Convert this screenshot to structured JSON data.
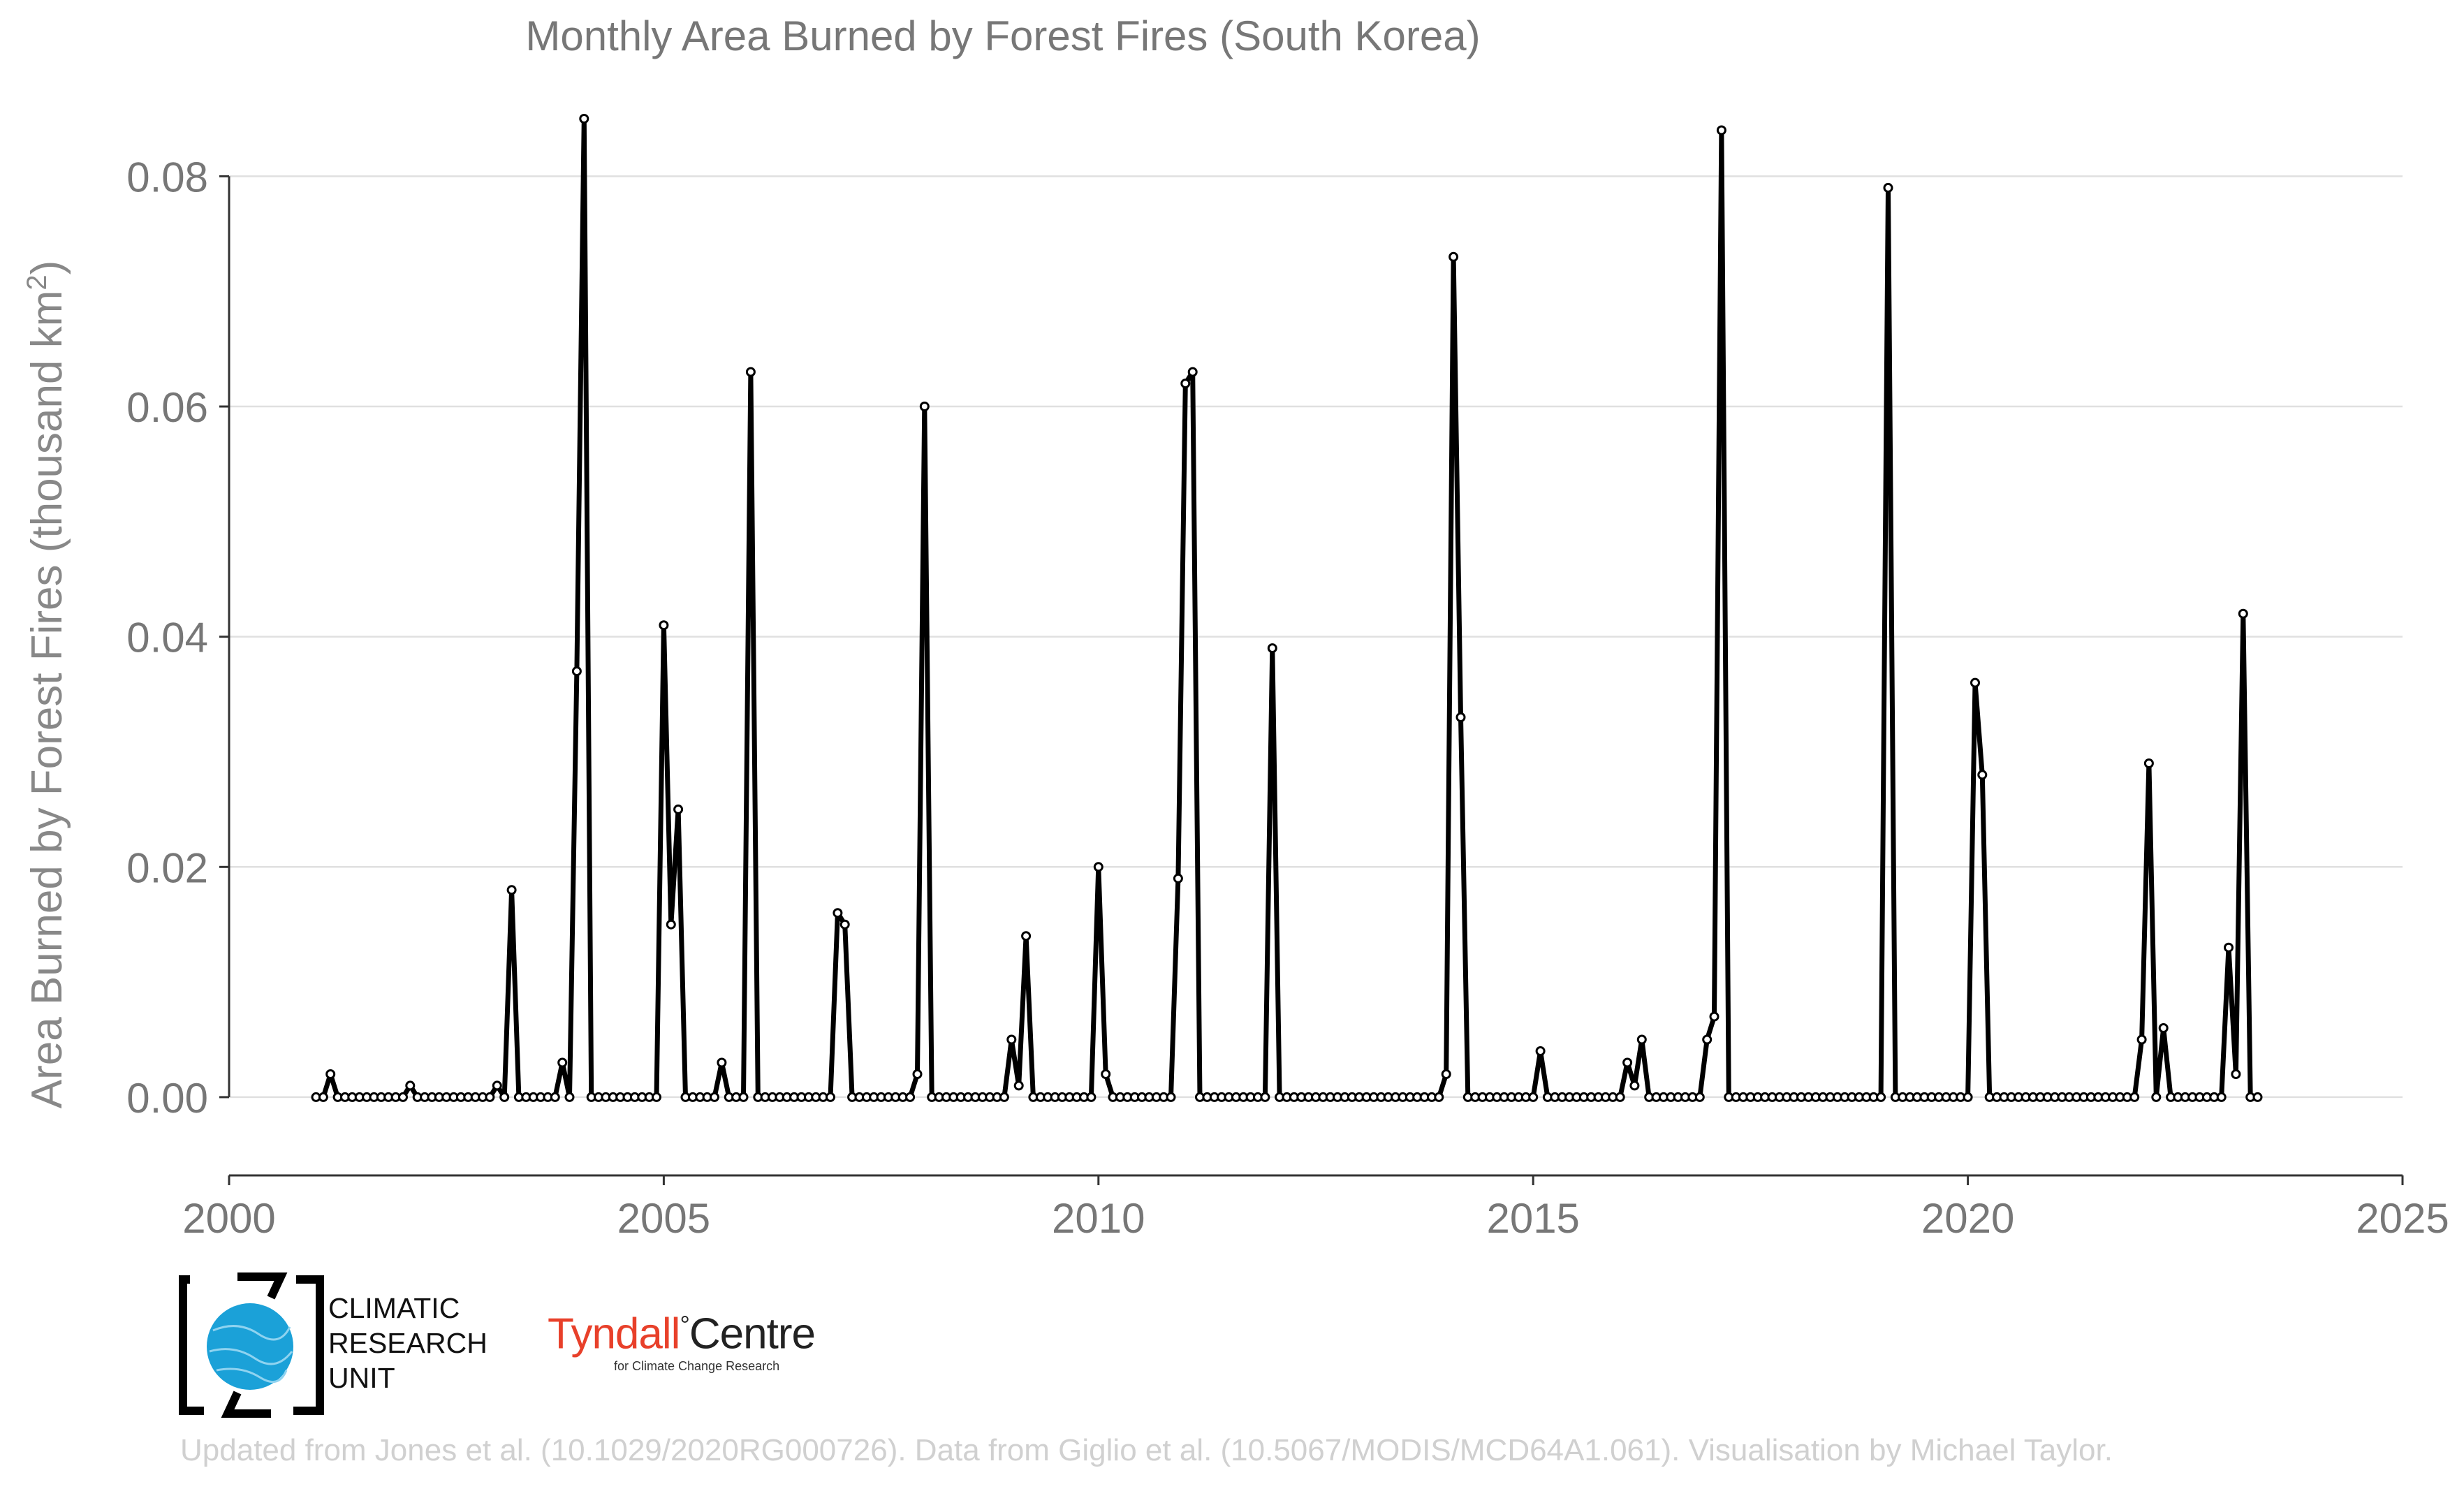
{
  "chart_data": {
    "type": "line",
    "title": "Monthly Area Burned by Forest Fires (South Korea)",
    "ylabel": "Area Burned by Forest Fires (thousand km",
    "ylabel_sup": "2",
    "ylabel_close": ")",
    "xlim": [
      2000,
      2025
    ],
    "ylim": [
      -0.0068,
      0.085
    ],
    "xticks": [
      "2000",
      "2005",
      "2010",
      "2015",
      "2020",
      "2025"
    ],
    "yticks": [
      "0.00",
      "0.02",
      "0.04",
      "0.06",
      "0.08"
    ],
    "grid": "horizontal",
    "start_year": 2001,
    "series": [
      {
        "values": [
          0,
          0,
          0.002,
          0,
          0,
          0,
          0,
          0,
          0,
          0,
          0,
          0,
          0,
          0.001,
          0,
          0,
          0,
          0,
          0,
          0,
          0,
          0,
          0,
          0,
          0,
          0.001,
          0,
          0.018,
          0,
          0,
          0,
          0,
          0,
          0,
          0.003,
          0,
          0.037,
          0.085,
          0,
          0,
          0,
          0,
          0,
          0,
          0,
          0,
          0,
          0,
          0.041,
          0.015,
          0.025,
          0,
          0,
          0,
          0,
          0,
          0.003,
          0,
          0,
          0,
          0.063,
          0,
          0,
          0,
          0,
          0,
          0,
          0,
          0,
          0,
          0,
          0,
          0.016,
          0.015,
          0,
          0,
          0,
          0,
          0,
          0,
          0,
          0,
          0,
          0.002,
          0.06,
          0,
          0,
          0,
          0,
          0,
          0,
          0,
          0,
          0,
          0,
          0,
          0.005,
          0.001,
          0.014,
          0,
          0,
          0,
          0,
          0,
          0,
          0,
          0,
          0,
          0.02,
          0.002,
          0,
          0,
          0,
          0,
          0,
          0,
          0,
          0,
          0,
          0.019,
          0.062,
          0.063,
          0,
          0,
          0,
          0,
          0,
          0,
          0,
          0,
          0,
          0,
          0.039,
          0,
          0,
          0,
          0,
          0,
          0,
          0,
          0,
          0,
          0,
          0,
          0,
          0,
          0,
          0,
          0,
          0,
          0,
          0,
          0,
          0,
          0,
          0,
          0.002,
          0.073,
          0.033,
          0,
          0,
          0,
          0,
          0,
          0,
          0,
          0,
          0,
          0,
          0.004,
          0,
          0,
          0,
          0,
          0,
          0,
          0,
          0,
          0,
          0,
          0,
          0.003,
          0.001,
          0.005,
          0,
          0,
          0,
          0,
          0,
          0,
          0,
          0,
          0.005,
          0.007,
          0.084,
          0,
          0,
          0,
          0,
          0,
          0,
          0,
          0,
          0,
          0,
          0,
          0,
          0,
          0,
          0,
          0,
          0,
          0,
          0,
          0,
          0,
          0,
          0.079,
          0,
          0,
          0,
          0,
          0,
          0,
          0,
          0,
          0,
          0,
          0,
          0.036,
          0.028,
          0,
          0,
          0,
          0,
          0,
          0,
          0,
          0,
          0,
          0,
          0,
          0,
          0,
          0,
          0,
          0,
          0,
          0,
          0,
          0,
          0,
          0.005,
          0.029,
          0,
          0.006,
          0,
          0,
          0,
          0,
          0,
          0,
          0,
          0,
          0.013,
          0.002,
          0.042,
          0,
          0
        ]
      }
    ]
  },
  "logos": {
    "cru": [
      "CLIMATIC",
      "RESEARCH",
      "UNIT"
    ],
    "tyndall_name": "Tyndall",
    "tyndall_degree": "°",
    "tyndall_centre": "Centre",
    "tyndall_sub": "for Climate Change Research",
    "cru_color": "#1ba1d8",
    "tyndall_color": "#e8402a"
  },
  "credit": "Updated from Jones et al. (10.1029/2020RG000726). Data from Giglio et al. (10.5067/MODIS/MCD64A1.061). Visualisation by Michael Taylor."
}
